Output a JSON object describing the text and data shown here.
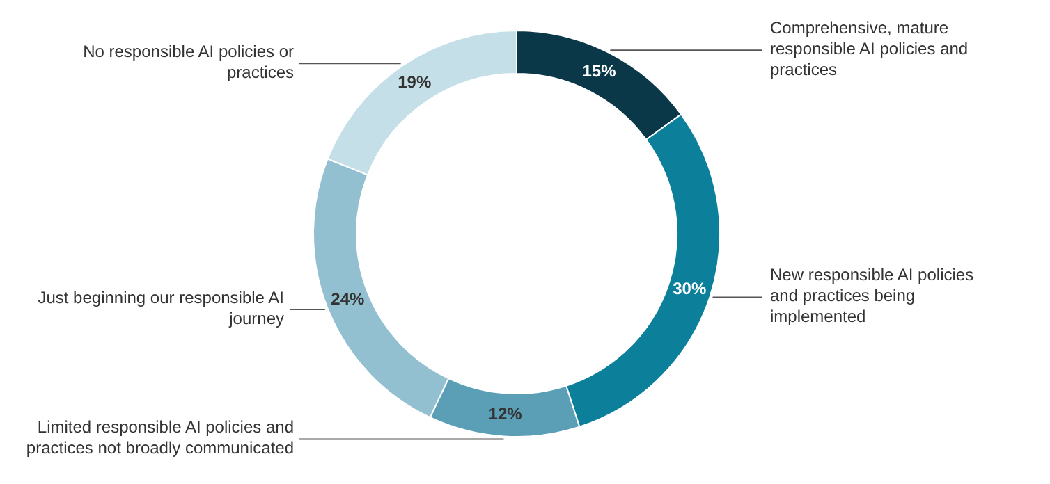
{
  "chart_data": {
    "type": "donut",
    "categories": [
      "Comprehensive, mature responsible AI policies and practices",
      "New responsible AI policies and practices being implemented",
      "Limited responsible AI policies and practices not broadly communicated",
      "Just beginning our responsible AI journey",
      "No responsible AI policies or practices"
    ],
    "values": [
      15,
      30,
      12,
      24,
      19
    ],
    "colors": [
      "#0b3848",
      "#0c7f9b",
      "#5b9fb6",
      "#93c0d0",
      "#c5dfe8"
    ],
    "value_labels": [
      "15%",
      "30%",
      "12%",
      "24%",
      "19%"
    ]
  }
}
